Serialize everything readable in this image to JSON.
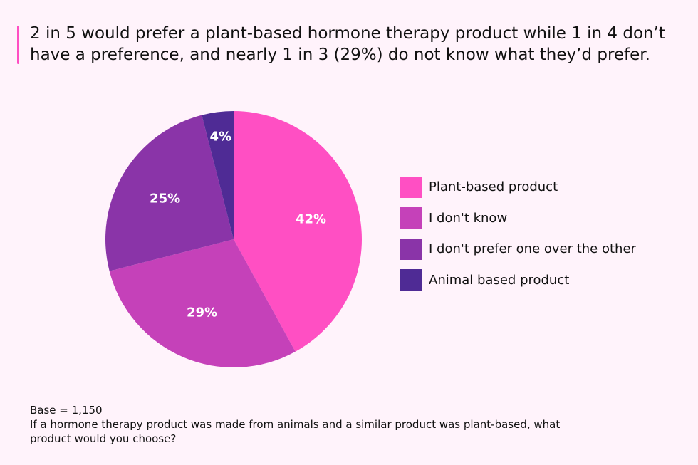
{
  "title": "2 in 5 would prefer a plant-based hormone therapy product while 1 in 4 don’t have a preference, and nearly 1 in 3 (29%) do not know what they’d prefer.",
  "chart_data": {
    "type": "pie",
    "title": "2 in 5 would prefer a plant-based hormone therapy product while 1 in 4 don’t have a preference, and nearly 1 in 3 (29%) do not know what they’d prefer.",
    "categories": [
      "Plant-based product",
      "I don't know",
      "I don't prefer one over the other",
      "Animal based product"
    ],
    "values": [
      42,
      29,
      25,
      4
    ],
    "value_labels": [
      "42%",
      "29%",
      "25%",
      "4%"
    ],
    "colors": [
      "#ff4fc3",
      "#c541b9",
      "#8a34a8",
      "#4f2b95"
    ],
    "legend_position": "right"
  },
  "footnote": {
    "base": "Base = 1,150",
    "question": "If a hormone therapy product was made from animals and a similar product was plant-based, what product would you choose?"
  }
}
